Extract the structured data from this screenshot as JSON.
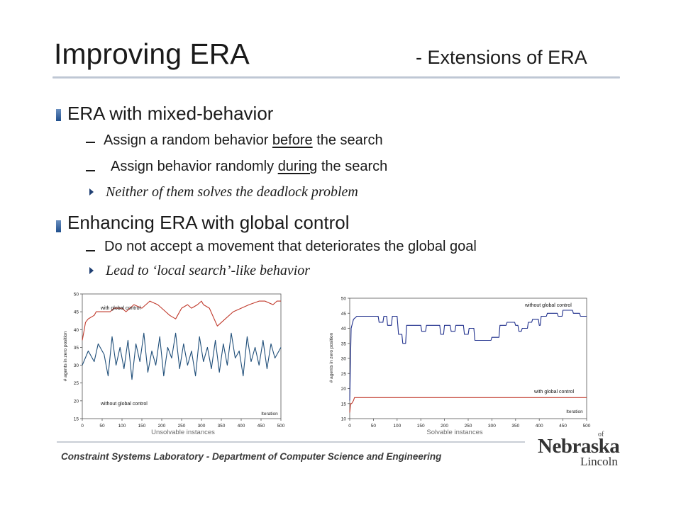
{
  "slide": {
    "title": "Improving ERA",
    "subtitle": "- Extensions of ERA"
  },
  "sections": [
    {
      "heading": "ERA with mixed-behavior",
      "items": [
        {
          "pre": "Assign a random behavior ",
          "underline": "before",
          "post": " the search"
        },
        {
          "pre": "Assign behavior randomly ",
          "underline": "during",
          "post": " the search"
        }
      ],
      "conclusion": "Neither of them solves the deadlock problem"
    },
    {
      "heading": "Enhancing ERA with global control",
      "items": [
        {
          "pre": "Do not accept a movement that deteriorates the global goal",
          "underline": "",
          "post": ""
        }
      ],
      "conclusion": "Lead to ‘local search’-like behavior"
    }
  ],
  "chart_data": [
    {
      "type": "line",
      "caption": "Unsolvable instances",
      "xlabel": "Iteration",
      "ylabel": "# agents in zero position",
      "xlim": [
        0,
        500
      ],
      "ylim": [
        15,
        50
      ],
      "x_ticks": [
        0,
        50,
        100,
        150,
        200,
        250,
        300,
        350,
        400,
        450,
        500
      ],
      "y_ticks": [
        15,
        20,
        25,
        30,
        35,
        40,
        45,
        50
      ],
      "series": [
        {
          "name": "with global control",
          "color": "#c0392b",
          "x": [
            0,
            5,
            8,
            15,
            30,
            35,
            60,
            70,
            80,
            95,
            100,
            110,
            120,
            130,
            150,
            160,
            170,
            190,
            200,
            210,
            220,
            235,
            240,
            250,
            265,
            275,
            290,
            300,
            305,
            320,
            340,
            360,
            380,
            400,
            420,
            445,
            460,
            480,
            490,
            500
          ],
          "y": [
            37,
            40,
            42,
            43,
            44,
            45,
            45,
            45,
            46,
            46,
            46,
            45,
            46,
            47,
            46,
            47,
            48,
            47,
            46,
            45,
            44,
            43,
            44,
            46,
            47,
            46,
            47,
            48,
            47,
            46,
            41,
            43,
            45,
            46,
            47,
            48,
            48,
            47,
            48,
            48
          ]
        },
        {
          "name": "without global control",
          "color": "#1f4e79",
          "x": [
            0,
            15,
            30,
            40,
            55,
            65,
            75,
            85,
            95,
            105,
            115,
            125,
            135,
            145,
            155,
            165,
            175,
            185,
            195,
            205,
            215,
            225,
            235,
            245,
            255,
            265,
            275,
            285,
            295,
            305,
            315,
            325,
            335,
            345,
            355,
            365,
            375,
            385,
            395,
            405,
            415,
            425,
            435,
            445,
            455,
            465,
            475,
            485,
            495,
            500
          ],
          "y": [
            30,
            34,
            31,
            36,
            33,
            27,
            38,
            30,
            35,
            29,
            37,
            26,
            36,
            31,
            39,
            28,
            34,
            30,
            38,
            27,
            35,
            32,
            39,
            29,
            36,
            30,
            34,
            27,
            38,
            31,
            35,
            29,
            37,
            28,
            36,
            30,
            39,
            32,
            34,
            27,
            38,
            31,
            35,
            30,
            37,
            29,
            36,
            32,
            34,
            35
          ]
        }
      ]
    },
    {
      "type": "line",
      "caption": "Solvable instances",
      "xlabel": "Iteration",
      "ylabel": "# agents in zero position",
      "xlim": [
        0,
        500
      ],
      "ylim": [
        10,
        50
      ],
      "x_ticks": [
        0,
        50,
        100,
        150,
        200,
        250,
        300,
        350,
        400,
        450,
        500
      ],
      "y_ticks": [
        10,
        15,
        20,
        25,
        30,
        35,
        40,
        45,
        50
      ],
      "series": [
        {
          "name": "without global control",
          "color": "#1f2f8c",
          "x": [
            0,
            3,
            8,
            15,
            60,
            62,
            70,
            72,
            78,
            80,
            88,
            90,
            100,
            103,
            110,
            112,
            118,
            120,
            150,
            152,
            160,
            162,
            190,
            192,
            198,
            200,
            212,
            214,
            222,
            224,
            240,
            242,
            250,
            252,
            262,
            264,
            298,
            300,
            315,
            317,
            330,
            332,
            348,
            350,
            355,
            357,
            362,
            364,
            375,
            377,
            384,
            386,
            398,
            400,
            402,
            404,
            415,
            417,
            438,
            440,
            448,
            450,
            470,
            472,
            485,
            487,
            500
          ],
          "y": [
            16,
            40,
            43,
            44,
            44,
            42,
            42,
            44,
            44,
            41,
            41,
            44,
            44,
            38,
            38,
            35,
            35,
            41,
            41,
            39,
            39,
            41,
            41,
            38,
            38,
            41,
            41,
            39,
            39,
            41,
            41,
            38,
            38,
            40,
            40,
            36,
            36,
            37,
            37,
            41,
            41,
            42,
            42,
            41,
            41,
            39,
            39,
            40,
            40,
            42,
            42,
            43,
            43,
            41,
            41,
            44,
            44,
            45,
            45,
            44,
            44,
            46,
            46,
            45,
            45,
            44,
            44
          ]
        },
        {
          "name": "with global control",
          "color": "#c0392b",
          "x": [
            0,
            2,
            4,
            8,
            10,
            15,
            20,
            50,
            100,
            200,
            300,
            400,
            500
          ],
          "y": [
            12,
            15,
            15,
            16,
            17,
            17,
            17,
            17,
            17,
            17,
            17,
            17,
            17
          ]
        }
      ]
    }
  ],
  "footer": {
    "text": "Constraint Systems Laboratory - Department of Computer Science and Engineering",
    "logo_of": "of",
    "logo_name": "Nebraska",
    "logo_city": "Lincoln"
  }
}
